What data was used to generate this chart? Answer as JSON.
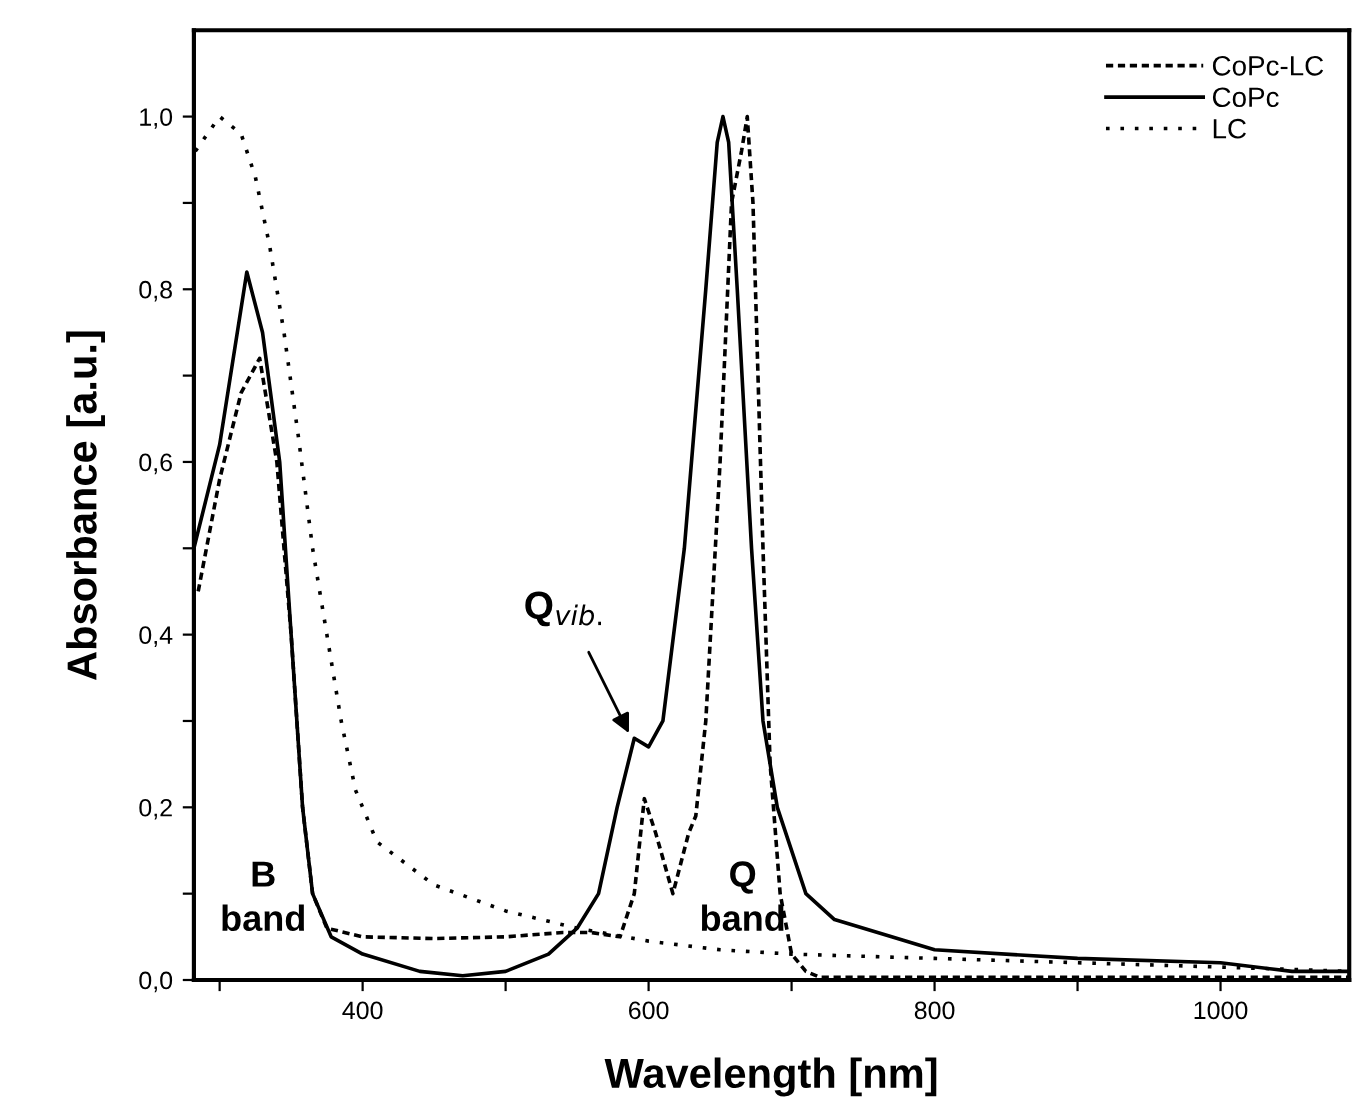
{
  "chart_data": {
    "type": "line",
    "xlabel": "Wavelength [nm]",
    "ylabel": "Absorbance [a.u.]",
    "xlim": [
      282,
      1090
    ],
    "ylim": [
      0,
      1.1
    ],
    "xticks": [
      {
        "value": 300,
        "label": null
      },
      {
        "value": 400,
        "label": "400"
      },
      {
        "value": 500,
        "label": null
      },
      {
        "value": 600,
        "label": "600"
      },
      {
        "value": 700,
        "label": null
      },
      {
        "value": 800,
        "label": "800"
      },
      {
        "value": 900,
        "label": null
      },
      {
        "value": 1000,
        "label": "1000"
      }
    ],
    "yticks": [
      {
        "value": 0,
        "label": "0,0"
      },
      {
        "value": 0.1,
        "label": null
      },
      {
        "value": 0.2,
        "label": "0,2"
      },
      {
        "value": 0.3,
        "label": null
      },
      {
        "value": 0.4,
        "label": "0,4"
      },
      {
        "value": 0.5,
        "label": null
      },
      {
        "value": 0.6,
        "label": "0,6"
      },
      {
        "value": 0.7,
        "label": null
      },
      {
        "value": 0.8,
        "label": "0,8"
      },
      {
        "value": 0.9,
        "label": null
      },
      {
        "value": 1.0,
        "label": "1,0"
      }
    ],
    "grid": false,
    "legend": "top right",
    "marker": "none",
    "series": [
      {
        "name": "CoPc-LC",
        "color": "#000000",
        "line_style": "dashed",
        "x": [
          285,
          300,
          315,
          328,
          340,
          350,
          358,
          365,
          375,
          400,
          450,
          500,
          540,
          560,
          580,
          590,
          597,
          605,
          617,
          628,
          633,
          640,
          650,
          658,
          665,
          669,
          673,
          680,
          685,
          692,
          700,
          710,
          720,
          800,
          900,
          1000,
          1090
        ],
        "values": [
          0.45,
          0.58,
          0.68,
          0.72,
          0.6,
          0.4,
          0.2,
          0.1,
          0.06,
          0.05,
          0.048,
          0.05,
          0.055,
          0.055,
          0.05,
          0.1,
          0.21,
          0.17,
          0.1,
          0.17,
          0.19,
          0.3,
          0.6,
          0.9,
          0.96,
          1.0,
          0.9,
          0.5,
          0.25,
          0.1,
          0.03,
          0.01,
          0.003,
          0.003,
          0.003,
          0.003,
          0.003
        ]
      },
      {
        "name": "CoPc",
        "color": "#000000",
        "line_style": "solid",
        "x": [
          282,
          300,
          319,
          330,
          342,
          350,
          358,
          365,
          378,
          400,
          440,
          470,
          500,
          530,
          550,
          565,
          578,
          590,
          600,
          610,
          625,
          640,
          648,
          652,
          656,
          662,
          672,
          680,
          690,
          710,
          730,
          770,
          800,
          900,
          1000,
          1050,
          1090
        ],
        "values": [
          0.5,
          0.62,
          0.82,
          0.75,
          0.6,
          0.4,
          0.2,
          0.1,
          0.05,
          0.03,
          0.01,
          0.005,
          0.01,
          0.03,
          0.06,
          0.1,
          0.2,
          0.28,
          0.27,
          0.3,
          0.5,
          0.8,
          0.97,
          1.0,
          0.97,
          0.8,
          0.5,
          0.3,
          0.2,
          0.1,
          0.07,
          0.05,
          0.035,
          0.025,
          0.02,
          0.01,
          0.01
        ]
      },
      {
        "name": "LC",
        "color": "#000000",
        "line_style": "dotted",
        "x": [
          283,
          300,
          315,
          325,
          335,
          345,
          355,
          365,
          375,
          385,
          395,
          410,
          450,
          500,
          550,
          600,
          650,
          700,
          800,
          900,
          1000,
          1090
        ],
        "values": [
          0.96,
          1.0,
          0.98,
          0.93,
          0.85,
          0.75,
          0.63,
          0.5,
          0.4,
          0.3,
          0.22,
          0.16,
          0.11,
          0.08,
          0.06,
          0.045,
          0.035,
          0.03,
          0.025,
          0.02,
          0.015,
          0.01
        ]
      }
    ],
    "annotations": [
      "B\nband",
      "Q\nband",
      {
        "text": "Q$_{vib.}$",
        "x": 588,
        "y": 0.28
      }
    ]
  }
}
